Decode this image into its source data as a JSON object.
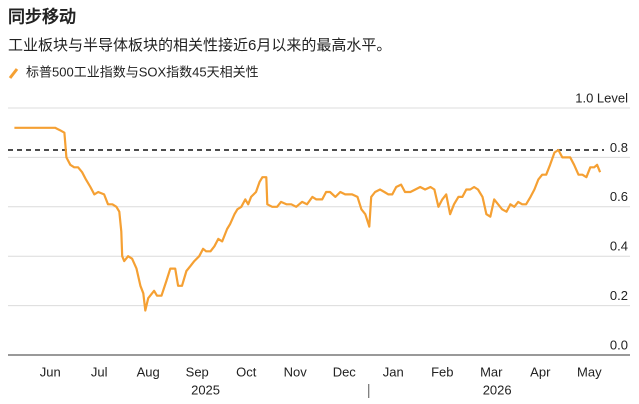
{
  "chart_data": {
    "type": "line",
    "title": "同步移动",
    "subtitle": "工业板块与半导体板块的相关性接近6月以来的最高水平。",
    "series": [
      {
        "name": "标普500工业指数与SOX指数45天相关性",
        "color": "#f5a033",
        "x": [
          5.27,
          5.49,
          5.8,
          6.1,
          6.2,
          6.29,
          6.33,
          6.41,
          6.49,
          6.57,
          6.65,
          6.73,
          6.82,
          6.9,
          6.98,
          7.1,
          7.18,
          7.27,
          7.35,
          7.41,
          7.45,
          7.47,
          7.51,
          7.59,
          7.67,
          7.76,
          7.84,
          7.9,
          7.94,
          8.0,
          8.08,
          8.12,
          8.18,
          8.27,
          8.37,
          8.45,
          8.55,
          8.61,
          8.69,
          8.78,
          8.86,
          8.94,
          9.04,
          9.12,
          9.18,
          9.27,
          9.35,
          9.43,
          9.51,
          9.61,
          9.67,
          9.76,
          9.82,
          9.9,
          9.98,
          10.04,
          10.1,
          10.2,
          10.27,
          10.33,
          10.41,
          10.43,
          10.53,
          10.63,
          10.71,
          10.82,
          10.92,
          11.02,
          11.14,
          11.24,
          11.35,
          11.43,
          11.55,
          11.63,
          11.71,
          11.82,
          11.92,
          12.02,
          12.16,
          12.27,
          12.35,
          12.43,
          12.51,
          12.55,
          12.63,
          12.73,
          12.82,
          12.9,
          12.98,
          13.06,
          13.16,
          13.24,
          13.35,
          13.45,
          13.55,
          13.65,
          13.76,
          13.84,
          13.92,
          14.0,
          14.08,
          14.16,
          14.24,
          14.33,
          14.41,
          14.49,
          14.57,
          14.65,
          14.73,
          14.82,
          14.9,
          14.98,
          15.06,
          15.14,
          15.22,
          15.31,
          15.39,
          15.47,
          15.55,
          15.63,
          15.71,
          15.8,
          15.88,
          15.96,
          16.04,
          16.12,
          16.2,
          16.29,
          16.37,
          16.45,
          16.53,
          16.61,
          16.69,
          16.78,
          16.86,
          16.94,
          17.02,
          17.1,
          17.16,
          17.22
        ],
        "values": [
          0.92,
          0.92,
          0.92,
          0.92,
          0.91,
          0.9,
          0.8,
          0.77,
          0.76,
          0.76,
          0.74,
          0.71,
          0.68,
          0.65,
          0.66,
          0.65,
          0.61,
          0.61,
          0.6,
          0.58,
          0.5,
          0.4,
          0.38,
          0.4,
          0.39,
          0.35,
          0.28,
          0.25,
          0.18,
          0.23,
          0.25,
          0.26,
          0.24,
          0.24,
          0.3,
          0.35,
          0.35,
          0.28,
          0.28,
          0.34,
          0.36,
          0.38,
          0.4,
          0.43,
          0.42,
          0.42,
          0.44,
          0.47,
          0.46,
          0.51,
          0.53,
          0.57,
          0.59,
          0.6,
          0.63,
          0.61,
          0.64,
          0.66,
          0.7,
          0.72,
          0.72,
          0.61,
          0.6,
          0.6,
          0.62,
          0.61,
          0.61,
          0.6,
          0.62,
          0.61,
          0.64,
          0.63,
          0.63,
          0.66,
          0.66,
          0.64,
          0.66,
          0.65,
          0.65,
          0.64,
          0.59,
          0.57,
          0.52,
          0.64,
          0.66,
          0.67,
          0.66,
          0.65,
          0.65,
          0.68,
          0.69,
          0.66,
          0.66,
          0.67,
          0.68,
          0.67,
          0.68,
          0.67,
          0.6,
          0.63,
          0.65,
          0.57,
          0.61,
          0.64,
          0.64,
          0.67,
          0.67,
          0.68,
          0.67,
          0.64,
          0.57,
          0.56,
          0.63,
          0.61,
          0.59,
          0.58,
          0.61,
          0.6,
          0.62,
          0.61,
          0.61,
          0.64,
          0.67,
          0.71,
          0.73,
          0.73,
          0.77,
          0.82,
          0.83,
          0.8,
          0.8,
          0.8,
          0.77,
          0.73,
          0.73,
          0.72,
          0.76,
          0.76,
          0.77,
          0.74
        ]
      }
    ],
    "reference_line": 0.83,
    "xlim": [
      5.2,
      17.3
    ],
    "xticks": [
      {
        "value": 6,
        "label": "Jun"
      },
      {
        "value": 7,
        "label": "Jul"
      },
      {
        "value": 8,
        "label": "Aug"
      },
      {
        "value": 9,
        "label": "Sep"
      },
      {
        "value": 10,
        "label": "Oct"
      },
      {
        "value": 11,
        "label": "Nov"
      },
      {
        "value": 12,
        "label": "Dec"
      },
      {
        "value": 13,
        "label": "Jan"
      },
      {
        "value": 14,
        "label": "Feb"
      },
      {
        "value": 15,
        "label": "Mar"
      },
      {
        "value": 16,
        "label": "Apr"
      },
      {
        "value": 17,
        "label": "May"
      }
    ],
    "year_labels": [
      {
        "value": 9.17,
        "label": "2025"
      },
      {
        "value": 15.12,
        "label": "2026"
      }
    ],
    "ylim": [
      0,
      1
    ],
    "yticks": [
      {
        "value": 0,
        "label": "0.0"
      },
      0.2,
      0.4,
      0.6,
      0.8,
      {
        "value": 1,
        "label": "1.0 Level"
      }
    ],
    "grid": true
  }
}
